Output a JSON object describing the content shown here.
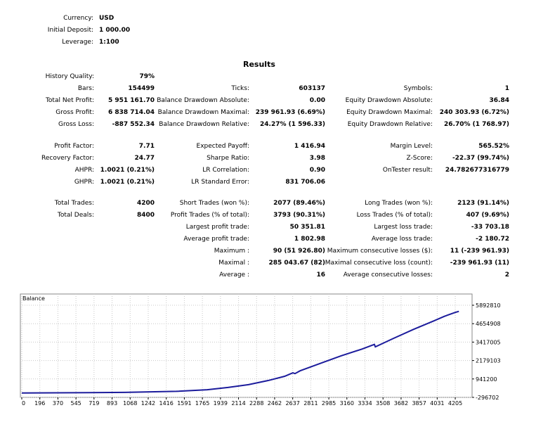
{
  "settings": [
    {
      "label": "Currency:",
      "value": "USD"
    },
    {
      "label": "Initial Deposit:",
      "value": "1 000.00"
    },
    {
      "label": "Leverage:",
      "value": "1:100"
    }
  ],
  "results_title": "Results",
  "stats": {
    "history_quality": {
      "label": "History Quality:",
      "value": "79%"
    },
    "bars": {
      "label": "Bars:",
      "value": "154499"
    },
    "ticks": {
      "label": "Ticks:",
      "value": "603137"
    },
    "symbols": {
      "label": "Symbols:",
      "value": "1"
    },
    "total_net_profit": {
      "label": "Total Net Profit:",
      "value": "5 951 161.70"
    },
    "balance_dd_abs": {
      "label": "Balance Drawdown Absolute:",
      "value": "0.00"
    },
    "equity_dd_abs": {
      "label": "Equity Drawdown Absolute:",
      "value": "36.84"
    },
    "gross_profit": {
      "label": "Gross Profit:",
      "value": "6 838 714.04"
    },
    "balance_dd_max": {
      "label": "Balance Drawdown Maximal:",
      "value": "239 961.93 (6.69%)"
    },
    "equity_dd_max": {
      "label": "Equity Drawdown Maximal:",
      "value": "240 303.93 (6.72%)"
    },
    "gross_loss": {
      "label": "Gross Loss:",
      "value": "-887 552.34"
    },
    "balance_dd_rel": {
      "label": "Balance Drawdown Relative:",
      "value": "24.27% (1 596.33)"
    },
    "equity_dd_rel": {
      "label": "Equity Drawdown Relative:",
      "value": "26.70% (1 768.97)"
    },
    "profit_factor": {
      "label": "Profit Factor:",
      "value": "7.71"
    },
    "expected_payoff": {
      "label": "Expected Payoff:",
      "value": "1 416.94"
    },
    "margin_level": {
      "label": "Margin Level:",
      "value": "565.52%"
    },
    "recovery_factor": {
      "label": "Recovery Factor:",
      "value": "24.77"
    },
    "sharpe_ratio": {
      "label": "Sharpe Ratio:",
      "value": "3.98"
    },
    "z_score": {
      "label": "Z-Score:",
      "value": "-22.37 (99.74%)"
    },
    "ahpr": {
      "label": "AHPR:",
      "value": "1.0021 (0.21%)"
    },
    "lr_correlation": {
      "label": "LR Correlation:",
      "value": "0.90"
    },
    "ontester": {
      "label": "OnTester result:",
      "value": "24.782677316779"
    },
    "ghpr": {
      "label": "GHPR:",
      "value": "1.0021 (0.21%)"
    },
    "lr_std_error": {
      "label": "LR Standard Error:",
      "value": "831 706.06"
    },
    "total_trades": {
      "label": "Total Trades:",
      "value": "4200"
    },
    "short_trades": {
      "label": "Short Trades (won %):",
      "value": "2077 (89.46%)"
    },
    "long_trades": {
      "label": "Long Trades (won %):",
      "value": "2123 (91.14%)"
    },
    "total_deals": {
      "label": "Total Deals:",
      "value": "8400"
    },
    "profit_trades": {
      "label": "Profit Trades (% of total):",
      "value": "3793 (90.31%)"
    },
    "loss_trades": {
      "label": "Loss Trades (% of total):",
      "value": "407 (9.69%)"
    },
    "largest_profit": {
      "label": "Largest profit trade:",
      "value": "50 351.81"
    },
    "largest_loss": {
      "label": "Largest loss trade:",
      "value": "-33 703.18"
    },
    "avg_profit": {
      "label": "Average profit trade:",
      "value": "1 802.98"
    },
    "avg_loss": {
      "label": "Average loss trade:",
      "value": "-2 180.72"
    },
    "max_consec_wins": {
      "label": "Maximum :",
      "value": "90 (51 926.80)"
    },
    "max_consec_losses": {
      "label": "Maximum consecutive losses ($):",
      "value": "11 (-239 961.93)"
    },
    "maximal_consec_profit": {
      "label": "Maximal :",
      "value": "285 043.67 (82)"
    },
    "maximal_consec_loss": {
      "label": "Maximal consecutive loss (count):",
      "value": "-239 961.93 (11)"
    },
    "avg_consec_wins": {
      "label": "Average :",
      "value": "16"
    },
    "avg_consec_losses": {
      "label": "Average consecutive losses:",
      "value": "2"
    }
  },
  "chart_data": {
    "type": "line",
    "title": "Balance",
    "x_ticks": [
      "0",
      "196",
      "370",
      "545",
      "719",
      "893",
      "1068",
      "1242",
      "1416",
      "1591",
      "1765",
      "1939",
      "2114",
      "2288",
      "2462",
      "2637",
      "2811",
      "2985",
      "3160",
      "3334",
      "3508",
      "3682",
      "3857",
      "4031",
      "4205"
    ],
    "y_ticks": [
      "5892810",
      "4654908",
      "3417005",
      "2179103",
      "941200",
      "-296702"
    ],
    "xlim": [
      0,
      4300
    ],
    "ylim": [
      -296702,
      5892810
    ],
    "series": [
      {
        "name": "Balance",
        "color": "#1c1c9c",
        "x": [
          0,
          500,
          1000,
          1500,
          1800,
          2000,
          2200,
          2400,
          2550,
          2630,
          2650,
          2700,
          2900,
          3100,
          3300,
          3420,
          3430,
          3600,
          3800,
          4000,
          4100,
          4200,
          4240
        ],
        "y": [
          1000,
          14000,
          40000,
          110000,
          220000,
          370000,
          560000,
          850000,
          1120000,
          1350000,
          1300000,
          1490000,
          2000000,
          2500000,
          2950000,
          3260000,
          3100000,
          3650000,
          4270000,
          4850000,
          5150000,
          5400000,
          5480000
        ]
      }
    ]
  }
}
